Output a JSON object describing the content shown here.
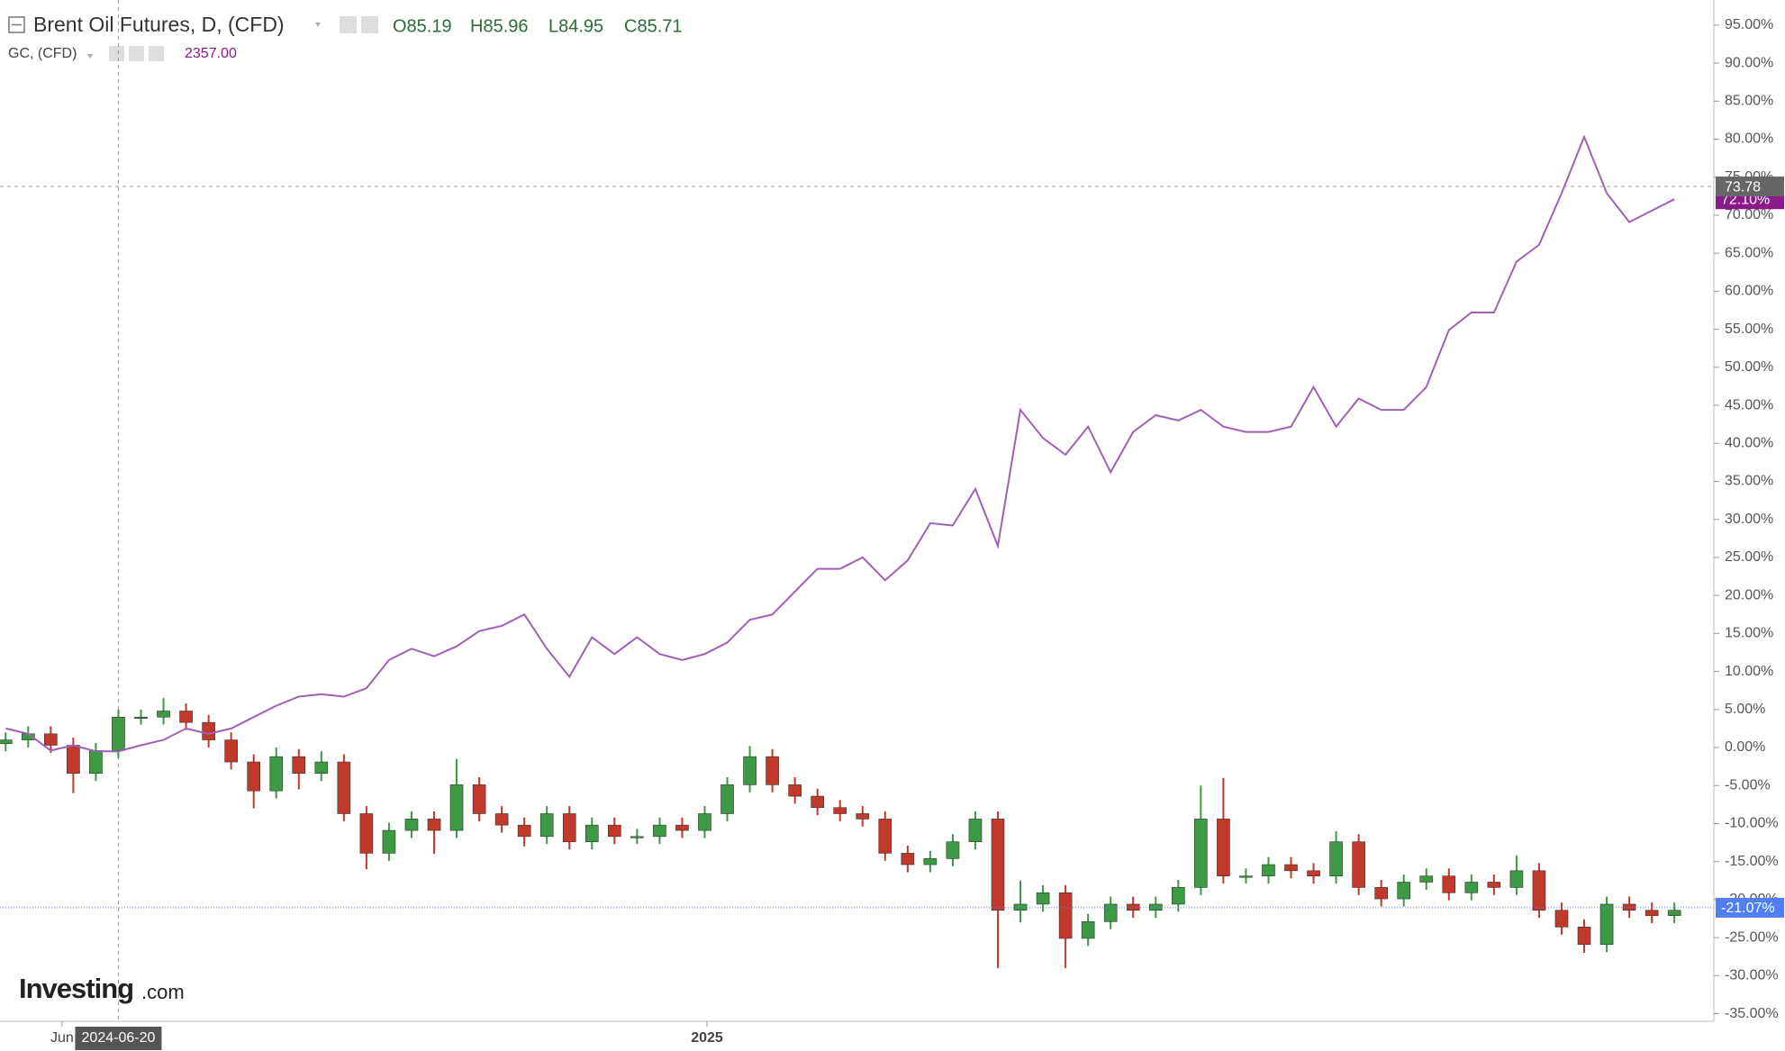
{
  "chart_data": {
    "type": "candlestick",
    "xlim": [
      -0.25,
      75.75
    ],
    "ylim": [
      -36,
      98.3
    ],
    "xticks": [
      {
        "value": 2.5,
        "label": "Jun"
      },
      {
        "value": 31.1,
        "label": "2025"
      }
    ],
    "yticks": [
      {
        "value": 95,
        "label": "95.00%"
      },
      {
        "value": 90,
        "label": "90.00%"
      },
      {
        "value": 85,
        "label": "85.00%"
      },
      {
        "value": 80,
        "label": "80.00%"
      },
      {
        "value": 75,
        "label": "75.00%"
      },
      {
        "value": 70,
        "label": "70.00%"
      },
      {
        "value": 65,
        "label": "65.00%"
      },
      {
        "value": 60,
        "label": "60.00%"
      },
      {
        "value": 55,
        "label": "55.00%"
      },
      {
        "value": 50,
        "label": "50.00%"
      },
      {
        "value": 45,
        "label": "45.00%"
      },
      {
        "value": 40,
        "label": "40.00%"
      },
      {
        "value": 35,
        "label": "35.00%"
      },
      {
        "value": 30,
        "label": "30.00%"
      },
      {
        "value": 25,
        "label": "25.00%"
      },
      {
        "value": 20,
        "label": "20.00%"
      },
      {
        "value": 15,
        "label": "15.00%"
      },
      {
        "value": 10,
        "label": "10.00%"
      },
      {
        "value": 5,
        "label": "5.00%"
      },
      {
        "value": 0,
        "label": "0.00%"
      },
      {
        "value": -5,
        "label": "-5.00%"
      },
      {
        "value": -10,
        "label": "-10.00%"
      },
      {
        "value": -15,
        "label": "-15.00%"
      },
      {
        "value": -20,
        "label": "-20.00%"
      },
      {
        "value": -25,
        "label": "-25.00%"
      },
      {
        "value": -30,
        "label": "-30.00%"
      },
      {
        "value": -35,
        "label": "-35.00%"
      }
    ],
    "grid": false,
    "crosshair": {
      "x": {
        "value": 5,
        "label": "2024-06-20"
      },
      "y": 73.78
    },
    "watermark": {
      "brand": "Investing",
      "suffix": ".com"
    },
    "series": [
      {
        "name": "Brent Oil Futures, D, (CFD)",
        "type": "candlestick",
        "up_color": "#3c9a45",
        "down_color": "#c0392b",
        "header": [
          "O85.19",
          "H85.96",
          "L84.95",
          "C85.71"
        ],
        "last_label": {
          "value": -21.07,
          "label": "-21.07%"
        },
        "last_color": "#4f7ff0",
        "open": [
          0.5,
          1,
          1.8,
          0.3,
          -3.4,
          -0.4,
          4,
          4,
          4.8,
          3.3,
          1,
          -1.9,
          -5.7,
          -1.2,
          -3.4,
          -1.9,
          -8.7,
          -13.9,
          -10.9,
          -9.4,
          -10.9,
          -4.9,
          -8.7,
          -10.2,
          -11.7,
          -8.7,
          -12.4,
          -10.2,
          -11.7,
          -11.7,
          -10.2,
          -10.9,
          -8.7,
          -4.9,
          -1.2,
          -4.9,
          -6.4,
          -7.9,
          -8.7,
          -9.4,
          -13.9,
          -15.4,
          -14.6,
          -12.4,
          -9.4,
          -21.4,
          -20.6,
          -19.1,
          -25.1,
          -22.9,
          -20.6,
          -21.4,
          -20.6,
          -18.4,
          -9.4,
          -16.9,
          -16.9,
          -15.4,
          -16.2,
          -16.9,
          -12.4,
          -18.4,
          -19.9,
          -17.7,
          -16.9,
          -19.1,
          -17.7,
          -18.4,
          -16.2,
          -21.4,
          -23.6,
          -25.9,
          -20.6,
          -21.4,
          -22.1
        ],
        "high": [
          2,
          2.8,
          2.8,
          1.3,
          0.6,
          5,
          5,
          6.5,
          5.8,
          4.3,
          2,
          -0.9,
          0,
          -0.2,
          -0.5,
          -0.9,
          -7.7,
          -9.9,
          -8.4,
          -8.4,
          -1.5,
          -3.9,
          -7.7,
          -9.2,
          -7.7,
          -7.7,
          -9.2,
          -9.2,
          -10.7,
          -9.2,
          -9.2,
          -7.7,
          -3.9,
          0.2,
          -0.2,
          -3.9,
          -5.4,
          -6.9,
          -7.7,
          -8.4,
          -12.9,
          -13.6,
          -11.4,
          -8.4,
          -8.4,
          -17.5,
          -18.1,
          -18.1,
          -21.9,
          -19.6,
          -19.6,
          -19.6,
          -17.4,
          -5,
          -4,
          -15.9,
          -14.4,
          -14.4,
          -15.2,
          -11,
          -11.4,
          -17.4,
          -16.7,
          -15.9,
          -15.9,
          -16.7,
          -16.7,
          -14.2,
          -15.2,
          -20.4,
          -22.6,
          -19.6,
          -19.6,
          -20.4,
          -20.4
        ],
        "low": [
          -0.5,
          0,
          -0.7,
          -6,
          -4.4,
          -1.4,
          3,
          3,
          2.3,
          0,
          -2.9,
          -8,
          -6.7,
          -5.5,
          -4.4,
          -9.7,
          -16,
          -14.9,
          -11.9,
          -14,
          -11.9,
          -9.7,
          -11.2,
          -13,
          -12.7,
          -13.4,
          -13.4,
          -12.7,
          -12.7,
          -12.7,
          -11.9,
          -11.9,
          -9.7,
          -5.9,
          -5.9,
          -7.4,
          -8.9,
          -9.7,
          -10.4,
          -14.9,
          -16.4,
          -16.4,
          -15.6,
          -13.4,
          -29,
          -23,
          -21.6,
          -29,
          -26.1,
          -23.9,
          -22.4,
          -22.4,
          -21.6,
          -19.4,
          -17.9,
          -17.9,
          -17.9,
          -17.2,
          -17.9,
          -17.9,
          -19.4,
          -20.9,
          -20.9,
          -18.7,
          -20.1,
          -20.1,
          -19.4,
          -19.4,
          -22.4,
          -24.6,
          -27,
          -26.9,
          -22.4,
          -23.1,
          -23.1
        ],
        "close": [
          1,
          1.8,
          0.3,
          -3.4,
          -0.4,
          4,
          4,
          4.8,
          3.3,
          1,
          -1.9,
          -5.7,
          -1.2,
          -3.4,
          -1.9,
          -8.7,
          -13.9,
          -10.9,
          -9.4,
          -10.9,
          -4.9,
          -8.7,
          -10.2,
          -11.7,
          -8.7,
          -12.4,
          -10.2,
          -11.7,
          -11.7,
          -10.2,
          -10.9,
          -8.7,
          -4.9,
          -1.2,
          -4.9,
          -6.4,
          -7.9,
          -8.7,
          -9.4,
          -13.9,
          -15.4,
          -14.6,
          -12.4,
          -9.4,
          -21.4,
          -20.6,
          -19.1,
          -25.1,
          -22.9,
          -20.6,
          -21.4,
          -20.6,
          -18.4,
          -9.4,
          -16.9,
          -16.9,
          -15.4,
          -16.2,
          -16.9,
          -12.4,
          -18.4,
          -19.9,
          -17.7,
          -16.9,
          -19.1,
          -17.7,
          -18.4,
          -16.2,
          -21.4,
          -23.6,
          -25.9,
          -20.6,
          -21.4,
          -22.1,
          -21.4
        ]
      },
      {
        "name": "GC, (CFD)",
        "type": "line",
        "color": "#a25fb6",
        "header": [
          "2357.00"
        ],
        "last_label": {
          "value": 72.1,
          "label": "72.10%"
        },
        "last_color": "#8a1a8a",
        "values": [
          2.5,
          1.8,
          -0.4,
          0.3,
          -0.5,
          -0.5,
          0.3,
          1,
          2.5,
          1.8,
          2.5,
          4,
          5.5,
          6.7,
          7,
          6.7,
          7.8,
          11.5,
          13,
          12,
          13.3,
          15.3,
          16,
          17.5,
          13,
          9.3,
          14.5,
          12.3,
          14.5,
          12.3,
          11.5,
          12.3,
          13.8,
          16.8,
          17.5,
          20.5,
          23.5,
          23.5,
          25,
          22,
          24.6,
          29.5,
          29.2,
          34,
          26.5,
          44.4,
          40.7,
          38.5,
          42.2,
          36.2,
          41.5,
          43.7,
          43,
          44.4,
          42.2,
          41.5,
          41.5,
          42.2,
          47.4,
          42.2,
          45.9,
          44.4,
          44.4,
          47.4,
          54.9,
          57.2,
          57.2,
          63.9,
          66.1,
          72.9,
          80.3,
          72.9,
          69.1,
          70.6,
          72.1
        ]
      }
    ]
  }
}
